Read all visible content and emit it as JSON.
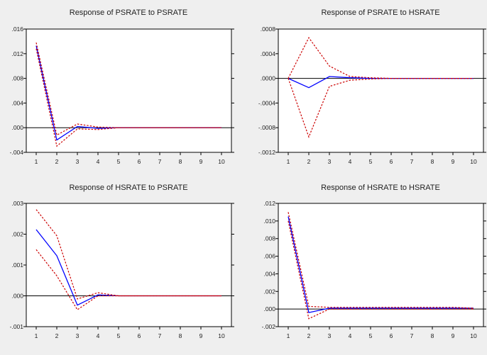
{
  "chart_data": [
    {
      "type": "line",
      "title": "Response of PSRATE to PSRATE",
      "x": [
        1,
        2,
        3,
        4,
        5,
        6,
        7,
        8,
        9,
        10
      ],
      "xticks": [
        "1",
        "2",
        "3",
        "4",
        "5",
        "6",
        "7",
        "8",
        "9",
        "10"
      ],
      "ylim": [
        -0.004,
        0.016
      ],
      "yticks": [
        -0.004,
        0.0,
        0.004,
        0.008,
        0.012,
        0.016
      ],
      "ytick_labels": [
        "-.004",
        ".000",
        ".004",
        ".008",
        ".012",
        ".016"
      ],
      "zero_line": true,
      "grid": false,
      "colors": {
        "response": "#0000ff",
        "bands": "#cc0000",
        "zero": "#000000"
      },
      "series": [
        {
          "role": "response",
          "values": [
            0.0133,
            -0.002,
            0.0002,
            -0.0001,
            0.0,
            0.0,
            0.0,
            0.0,
            0.0,
            0.0
          ]
        },
        {
          "role": "upper",
          "values": [
            0.0138,
            -0.0012,
            0.0006,
            0.0001,
            0.0,
            0.0,
            0.0,
            0.0,
            0.0,
            0.0
          ]
        },
        {
          "role": "lower",
          "values": [
            0.0128,
            -0.003,
            -0.0002,
            -0.0003,
            0.0,
            0.0,
            0.0,
            0.0,
            0.0,
            0.0
          ]
        }
      ]
    },
    {
      "type": "line",
      "title": "Response of PSRATE to HSRATE",
      "x": [
        1,
        2,
        3,
        4,
        5,
        6,
        7,
        8,
        9,
        10
      ],
      "xticks": [
        "1",
        "2",
        "3",
        "4",
        "5",
        "6",
        "7",
        "8",
        "9",
        "10"
      ],
      "ylim": [
        -0.0012,
        0.0008
      ],
      "yticks": [
        -0.0012,
        -0.0008,
        -0.0004,
        0.0,
        0.0004,
        0.0008
      ],
      "ytick_labels": [
        "-.0012",
        "-.0008",
        "-.0004",
        ".0000",
        ".0004",
        ".0008"
      ],
      "zero_line": true,
      "grid": false,
      "colors": {
        "response": "#0000ff",
        "bands": "#cc0000",
        "zero": "#000000"
      },
      "series": [
        {
          "role": "response",
          "values": [
            0.0,
            -0.00015,
            3e-05,
            1e-05,
            0.0,
            0.0,
            0.0,
            0.0,
            0.0,
            0.0
          ]
        },
        {
          "role": "upper",
          "values": [
            0.0,
            0.00066,
            0.0002,
            3e-05,
            1e-05,
            0.0,
            0.0,
            0.0,
            0.0,
            0.0
          ]
        },
        {
          "role": "lower",
          "values": [
            0.0,
            -0.00095,
            -0.00013,
            -3e-05,
            -1e-05,
            0.0,
            0.0,
            0.0,
            0.0,
            0.0
          ]
        }
      ]
    },
    {
      "type": "line",
      "title": "Response of HSRATE to PSRATE",
      "x": [
        1,
        2,
        3,
        4,
        5,
        6,
        7,
        8,
        9,
        10
      ],
      "xticks": [
        "1",
        "2",
        "3",
        "4",
        "5",
        "6",
        "7",
        "8",
        "9",
        "10"
      ],
      "ylim": [
        -0.001,
        0.003
      ],
      "yticks": [
        -0.001,
        0.0,
        0.001,
        0.002,
        0.003
      ],
      "ytick_labels": [
        "-.001",
        ".000",
        ".001",
        ".002",
        ".003"
      ],
      "zero_line": true,
      "grid": false,
      "colors": {
        "response": "#0000ff",
        "bands": "#cc0000",
        "zero": "#000000"
      },
      "series": [
        {
          "role": "response",
          "values": [
            0.00215,
            0.0013,
            -0.0003,
            3e-05,
            0.0,
            0.0,
            0.0,
            0.0,
            0.0,
            0.0
          ]
        },
        {
          "role": "upper",
          "values": [
            0.0028,
            0.00195,
            -0.0001,
            0.0001,
            0.0,
            0.0,
            0.0,
            0.0,
            0.0,
            0.0
          ]
        },
        {
          "role": "lower",
          "values": [
            0.0015,
            0.00065,
            -0.00045,
            0.0,
            0.0,
            0.0,
            0.0,
            0.0,
            0.0,
            0.0
          ]
        }
      ]
    },
    {
      "type": "line",
      "title": "Response of HSRATE to HSRATE",
      "x": [
        1,
        2,
        3,
        4,
        5,
        6,
        7,
        8,
        9,
        10
      ],
      "xticks": [
        "1",
        "2",
        "3",
        "4",
        "5",
        "6",
        "7",
        "8",
        "9",
        "10"
      ],
      "ylim": [
        -0.002,
        0.012
      ],
      "yticks": [
        -0.002,
        0.0,
        0.002,
        0.004,
        0.006,
        0.008,
        0.01,
        0.012
      ],
      "ytick_labels": [
        "-.002",
        ".000",
        ".002",
        ".004",
        ".006",
        ".008",
        ".010",
        ".012"
      ],
      "zero_line": true,
      "grid": false,
      "colors": {
        "response": "#0000ff",
        "bands": "#cc0000",
        "zero": "#000000"
      },
      "series": [
        {
          "role": "response",
          "values": [
            0.0105,
            -0.0004,
            0.0001,
            0.0001,
            0.0001,
            0.0001,
            0.0001,
            0.0001,
            0.0001,
            0.0001
          ]
        },
        {
          "role": "upper",
          "values": [
            0.011,
            0.0003,
            0.0002,
            0.0002,
            0.0002,
            0.0002,
            0.0002,
            0.0002,
            0.0002,
            0.0001
          ]
        },
        {
          "role": "lower",
          "values": [
            0.01,
            -0.0011,
            0.0,
            0.0,
            0.0,
            0.0,
            0.0,
            0.0,
            0.0,
            0.0
          ]
        }
      ]
    }
  ]
}
